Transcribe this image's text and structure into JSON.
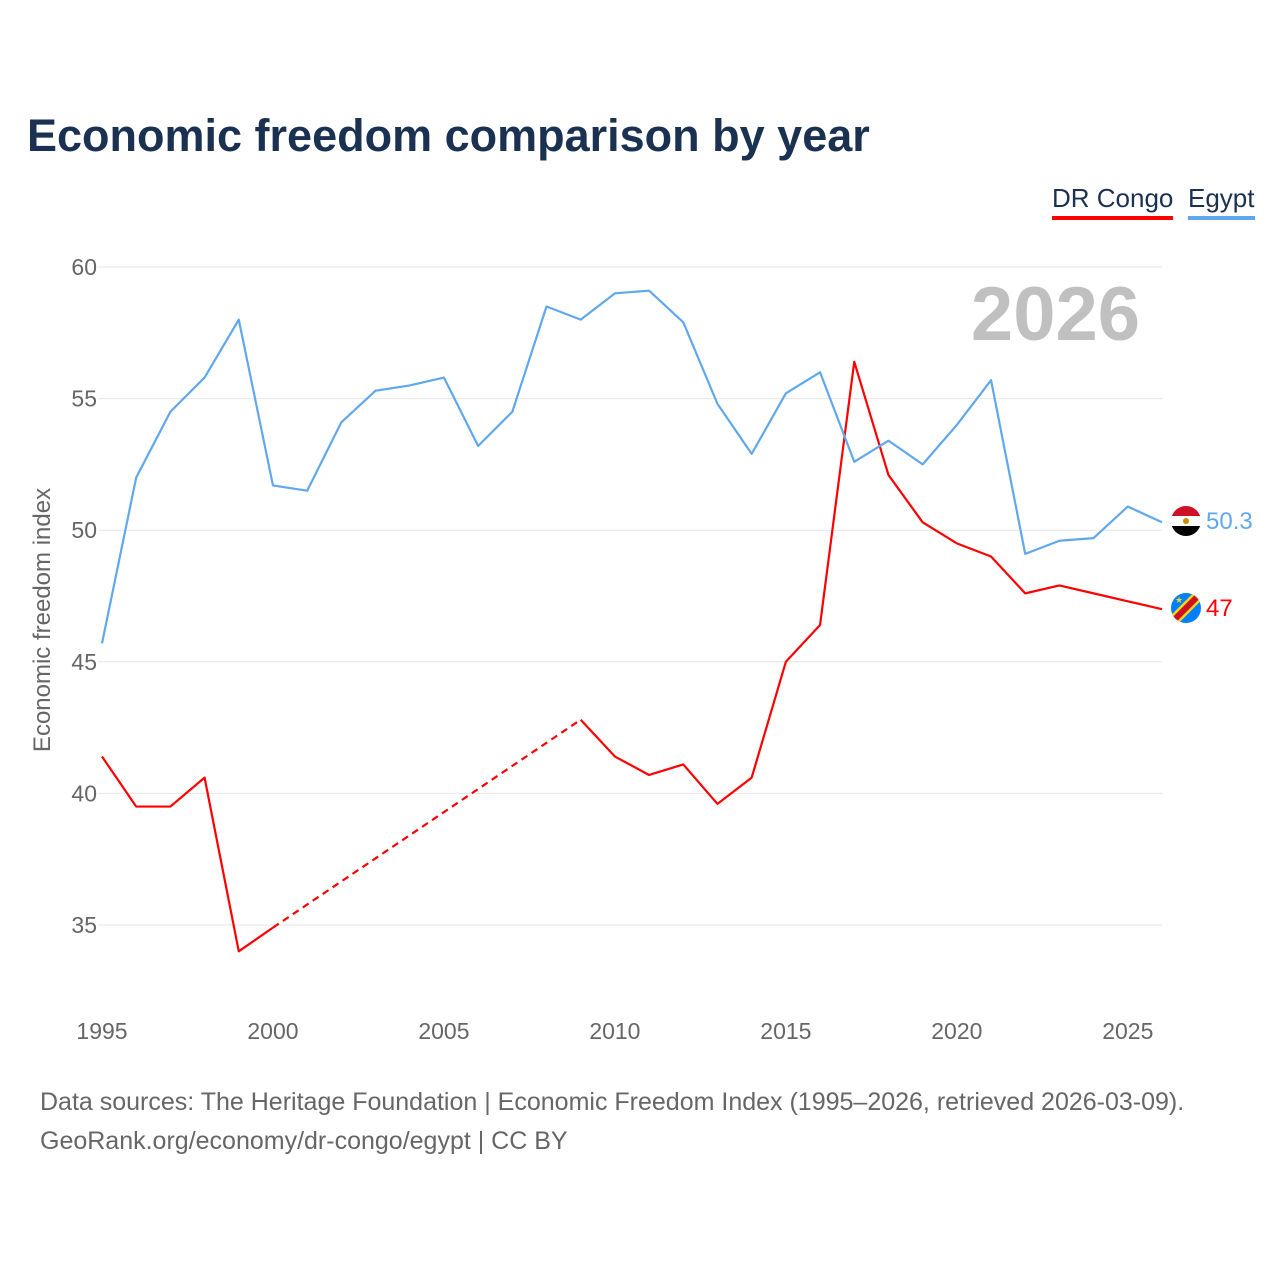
{
  "chart_data": {
    "type": "line",
    "title": "Economic freedom comparison by year",
    "xlabel": "",
    "ylabel": "Economic freedom index",
    "xlim": [
      1995,
      2026
    ],
    "ylim": [
      32.5,
      60
    ],
    "x_ticks": [
      1995,
      2000,
      2005,
      2010,
      2015,
      2020,
      2025
    ],
    "y_ticks": [
      35,
      40,
      45,
      50,
      55,
      60
    ],
    "grid": true,
    "legend_placement": "top-right",
    "year_watermark": "2026",
    "x": [
      1995,
      1996,
      1997,
      1998,
      1999,
      2000,
      2001,
      2002,
      2003,
      2004,
      2005,
      2006,
      2007,
      2008,
      2009,
      2010,
      2011,
      2012,
      2013,
      2014,
      2015,
      2016,
      2017,
      2018,
      2019,
      2020,
      2021,
      2022,
      2023,
      2024,
      2025,
      2026
    ],
    "series": [
      {
        "name": "DR Congo",
        "color": "#ff0000",
        "end_label": "47",
        "values": [
          41.4,
          39.5,
          39.5,
          40.6,
          34.0,
          34.9,
          null,
          null,
          null,
          null,
          null,
          null,
          null,
          null,
          42.8,
          41.4,
          40.7,
          41.1,
          39.6,
          40.6,
          45.0,
          46.4,
          56.4,
          52.1,
          50.3,
          49.5,
          49.0,
          47.6,
          47.9,
          47.6,
          47.3,
          47.0
        ]
      },
      {
        "name": "Egypt",
        "color": "#60a8ee",
        "end_label": "50.3",
        "values": [
          45.7,
          52.0,
          54.5,
          55.8,
          58.0,
          51.7,
          51.5,
          54.1,
          55.3,
          55.5,
          55.8,
          53.2,
          54.5,
          58.5,
          58.0,
          59.0,
          59.1,
          57.9,
          54.8,
          52.9,
          55.2,
          56.0,
          52.6,
          53.4,
          52.5,
          54.0,
          55.7,
          49.1,
          49.6,
          49.7,
          50.9,
          50.3
        ]
      }
    ]
  },
  "footer": {
    "line1": "Data sources: The Heritage Foundation | Economic Freedom Index (1995–2026, retrieved 2026-03-09).",
    "line2": "GeoRank.org/economy/dr-congo/egypt | CC BY"
  }
}
